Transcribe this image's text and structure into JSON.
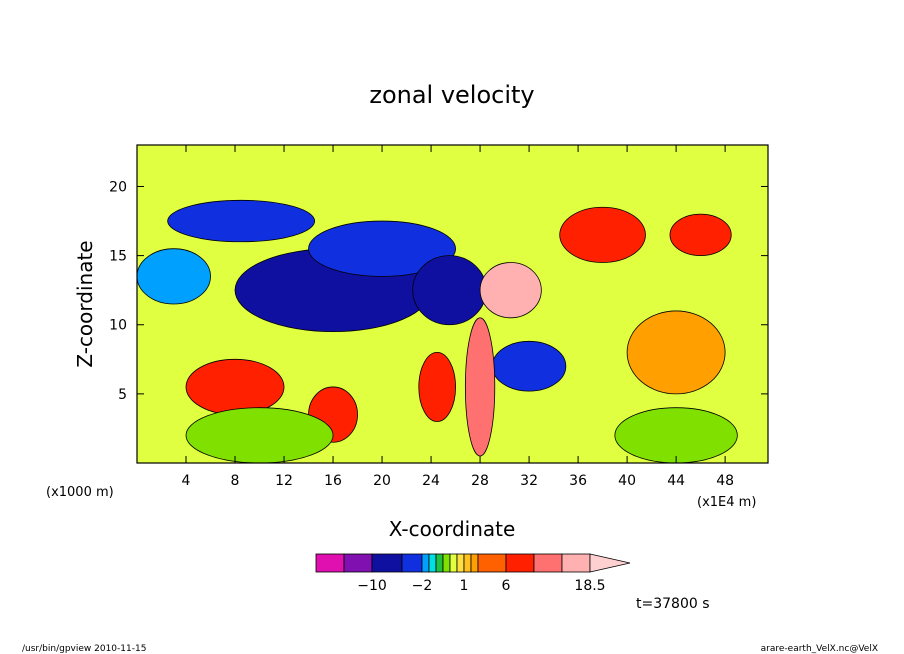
{
  "chart_data": {
    "type": "heatmap",
    "title": "zonal velocity",
    "xlabel": "X-coordinate",
    "ylabel": "Z-coordinate",
    "x_unit_left": "(x1000 m)",
    "x_unit_right": "(x1E4 m)",
    "xlim": [
      0,
      51.5
    ],
    "ylim": [
      0,
      23
    ],
    "x_ticks": [
      {
        "value": 4,
        "label": "4"
      },
      {
        "value": 8,
        "label": "8"
      },
      {
        "value": 12,
        "label": "12"
      },
      {
        "value": 16,
        "label": "16"
      },
      {
        "value": 20,
        "label": "20"
      },
      {
        "value": 24,
        "label": "24"
      },
      {
        "value": 28,
        "label": "28"
      },
      {
        "value": 32,
        "label": "32"
      },
      {
        "value": 36,
        "label": "36"
      },
      {
        "value": 40,
        "label": "40"
      },
      {
        "value": 44,
        "label": "44"
      },
      {
        "value": 48,
        "label": "48"
      }
    ],
    "y_ticks": [
      {
        "value": 5,
        "label": "5"
      },
      {
        "value": 10,
        "label": "10"
      },
      {
        "value": 15,
        "label": "15"
      },
      {
        "value": 20,
        "label": "20"
      }
    ],
    "colorbar": {
      "levels": [
        -18,
        -14,
        -10,
        -6,
        -2,
        -1.5,
        -1,
        -0.5,
        0,
        0.5,
        1,
        1.5,
        2,
        6,
        10,
        14,
        18.5
      ],
      "colors": [
        "#e010b0",
        "#8010b0",
        "#1010a0",
        "#1030e0",
        "#00a0ff",
        "#00e0e0",
        "#20c040",
        "#80e000",
        "#e0ff40",
        "#ffe040",
        "#ffc020",
        "#ffa000",
        "#ff6000",
        "#ff2000",
        "#ff7070",
        "#ffb0b0",
        "#ffd0d0"
      ],
      "tick_labels": [
        {
          "value": -10,
          "label": "−10"
        },
        {
          "value": -2,
          "label": "−2"
        },
        {
          "value": 1,
          "label": "1"
        },
        {
          "value": 6,
          "label": "6"
        },
        {
          "value": 18.5,
          "label": "18.5"
        }
      ]
    },
    "features": [
      {
        "kind": "blob",
        "cx": 16,
        "cy": 12.5,
        "rx": 8,
        "ry": 3,
        "value": -10
      },
      {
        "kind": "blob",
        "cx": 20,
        "cy": 15.5,
        "rx": 6,
        "ry": 2,
        "value": -6
      },
      {
        "kind": "blob",
        "cx": 8.5,
        "cy": 17.5,
        "rx": 6,
        "ry": 1.5,
        "value": -6
      },
      {
        "kind": "blob",
        "cx": 25.5,
        "cy": 12.5,
        "rx": 3,
        "ry": 2.5,
        "value": -10
      },
      {
        "kind": "blob",
        "cx": 32,
        "cy": 7,
        "rx": 3,
        "ry": 1.8,
        "value": -6
      },
      {
        "kind": "blob",
        "cx": 30.5,
        "cy": 12.5,
        "rx": 2.5,
        "ry": 2,
        "value": 14
      },
      {
        "kind": "blob",
        "cx": 28,
        "cy": 5.5,
        "rx": 1.2,
        "ry": 5,
        "value": 10
      },
      {
        "kind": "blob",
        "cx": 24.5,
        "cy": 5.5,
        "rx": 1.5,
        "ry": 2.5,
        "value": 6
      },
      {
        "kind": "blob",
        "cx": 8,
        "cy": 5.5,
        "rx": 4,
        "ry": 2,
        "value": 6
      },
      {
        "kind": "blob",
        "cx": 16,
        "cy": 3.5,
        "rx": 2,
        "ry": 2,
        "value": 6
      },
      {
        "kind": "blob",
        "cx": 38,
        "cy": 16.5,
        "rx": 3.5,
        "ry": 2,
        "value": 6
      },
      {
        "kind": "blob",
        "cx": 46,
        "cy": 16.5,
        "rx": 2.5,
        "ry": 1.5,
        "value": 6
      },
      {
        "kind": "blob",
        "cx": 44,
        "cy": 8,
        "rx": 4,
        "ry": 3,
        "value": 1.5
      },
      {
        "kind": "blob",
        "cx": 44,
        "cy": 2,
        "rx": 5,
        "ry": 2,
        "value": -0.5
      },
      {
        "kind": "blob",
        "cx": 10,
        "cy": 2,
        "rx": 6,
        "ry": 2,
        "value": -0.5
      },
      {
        "kind": "blob",
        "cx": 3,
        "cy": 13.5,
        "rx": 3,
        "ry": 2,
        "value": -2
      }
    ],
    "annotation": "t=37800 s",
    "footer_left": "/usr/bin/gpview   2010-11-15",
    "footer_right": "arare-earth_VelX.nc@VelX"
  }
}
